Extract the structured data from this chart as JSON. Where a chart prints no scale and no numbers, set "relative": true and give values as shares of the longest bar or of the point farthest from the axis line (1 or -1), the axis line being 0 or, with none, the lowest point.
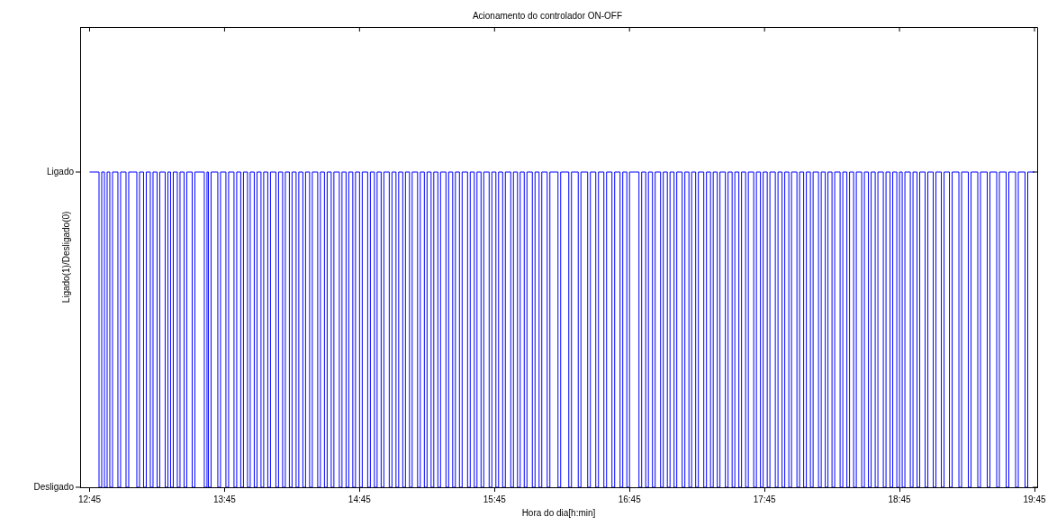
{
  "chart_data": {
    "type": "step",
    "title": "Acionamento do controlador ON-OFF",
    "xlabel": "Hora do dia[h:min]",
    "ylabel": "Ligado(1)/Desligado(0)",
    "xlim": [
      12.68,
      19.77
    ],
    "xticks": [
      {
        "value": 12.75,
        "label": "12:45"
      },
      {
        "value": 13.75,
        "label": "13:45"
      },
      {
        "value": 14.75,
        "label": "14:45"
      },
      {
        "value": 15.75,
        "label": "15:45"
      },
      {
        "value": 16.75,
        "label": "16:45"
      },
      {
        "value": 17.75,
        "label": "17:45"
      },
      {
        "value": 18.75,
        "label": "18:45"
      },
      {
        "value": 19.75,
        "label": "19:45"
      }
    ],
    "relative": true,
    "annotations": [
      "Ligado",
      "Desligado"
    ],
    "grid": false,
    "legend": false,
    "marker": "none",
    "line_style": "solid",
    "series": [
      {
        "color": "#0000ff",
        "x": [
          12.75,
          12.82,
          12.84,
          12.86,
          12.88,
          12.9,
          12.92,
          12.96,
          12.98,
          13.02,
          13.04,
          13.1,
          13.12,
          13.15,
          13.17,
          13.2,
          13.22,
          13.25,
          13.27,
          13.31,
          13.33,
          13.35,
          13.37,
          13.4,
          13.42,
          13.45,
          13.47,
          13.51,
          13.53,
          13.6,
          13.62,
          13.63,
          13.65,
          13.7,
          13.72,
          13.76,
          13.78,
          13.82,
          13.84,
          13.87,
          13.89,
          13.92,
          13.94,
          13.97,
          13.99,
          14.02,
          14.04,
          14.07,
          14.09,
          14.13,
          14.15,
          14.18,
          14.2,
          14.23,
          14.25,
          14.28,
          14.3,
          14.33,
          14.35,
          14.38,
          14.4,
          14.44,
          14.46,
          14.49,
          14.51,
          14.54,
          14.56,
          14.6,
          14.62,
          14.65,
          14.67,
          14.7,
          14.72,
          14.75,
          14.77,
          14.81,
          14.83,
          14.86,
          14.88,
          14.91,
          14.93,
          14.97,
          14.99,
          15.02,
          15.04,
          15.07,
          15.09,
          15.12,
          15.14,
          15.18,
          15.2,
          15.23,
          15.25,
          15.28,
          15.3,
          15.33,
          15.35,
          15.39,
          15.41,
          15.44,
          15.46,
          15.49,
          15.51,
          15.55,
          15.57,
          15.6,
          15.62,
          15.65,
          15.67,
          15.71,
          15.73,
          15.76,
          15.78,
          15.81,
          15.83,
          15.87,
          15.89,
          15.92,
          15.94,
          15.97,
          15.99,
          16.03,
          16.05,
          16.08,
          16.1,
          16.14,
          16.16,
          16.22,
          16.24,
          16.3,
          16.32,
          16.37,
          16.39,
          16.44,
          16.46,
          16.5,
          16.52,
          16.56,
          16.58,
          16.62,
          16.64,
          16.68,
          16.7,
          16.73,
          16.75,
          16.82,
          16.84,
          16.87,
          16.89,
          16.92,
          16.94,
          16.98,
          17.0,
          17.03,
          17.05,
          17.08,
          17.1,
          17.14,
          17.16,
          17.19,
          17.21,
          17.24,
          17.26,
          17.3,
          17.32,
          17.35,
          17.37,
          17.4,
          17.42,
          17.46,
          17.48,
          17.51,
          17.53,
          17.56,
          17.58,
          17.61,
          17.63,
          17.67,
          17.69,
          17.72,
          17.74,
          17.77,
          17.79,
          17.83,
          17.85,
          17.88,
          17.9,
          17.93,
          17.95,
          17.99,
          18.01,
          18.04,
          18.06,
          18.09,
          18.11,
          18.15,
          18.17,
          18.2,
          18.22,
          18.25,
          18.27,
          18.31,
          18.33,
          18.36,
          18.38,
          18.41,
          18.43,
          18.47,
          18.49,
          18.52,
          18.54,
          18.57,
          18.59,
          18.63,
          18.65,
          18.68,
          18.7,
          18.73,
          18.75,
          18.77,
          18.79,
          18.83,
          18.85,
          18.88,
          18.9,
          18.94,
          18.96,
          19.0,
          19.02,
          19.06,
          19.08,
          19.12,
          19.14,
          19.19,
          19.21,
          19.26,
          19.28,
          19.33,
          19.35,
          19.4,
          19.42,
          19.47,
          19.49,
          19.54,
          19.56,
          19.61,
          19.63,
          19.68,
          19.7,
          19.75
        ],
        "values": [
          1,
          0,
          1,
          0,
          1,
          0,
          1,
          0,
          1,
          0,
          1,
          0,
          1,
          0,
          1,
          0,
          1,
          0,
          1,
          0,
          1,
          0,
          1,
          0,
          1,
          0,
          1,
          0,
          1,
          0,
          1,
          0,
          1,
          0,
          1,
          0,
          1,
          0,
          1,
          0,
          1,
          0,
          1,
          0,
          1,
          0,
          1,
          0,
          1,
          0,
          1,
          0,
          1,
          0,
          1,
          0,
          1,
          0,
          1,
          0,
          1,
          0,
          1,
          0,
          1,
          0,
          1,
          0,
          1,
          0,
          1,
          0,
          1,
          0,
          1,
          0,
          1,
          0,
          1,
          0,
          1,
          0,
          1,
          0,
          1,
          0,
          1,
          0,
          1,
          0,
          1,
          0,
          1,
          0,
          1,
          0,
          1,
          0,
          1,
          0,
          1,
          0,
          1,
          0,
          1,
          0,
          1,
          0,
          1,
          0,
          1,
          0,
          1,
          0,
          1,
          0,
          1,
          0,
          1,
          0,
          1,
          0,
          1,
          0,
          1,
          0,
          1,
          0,
          1,
          0,
          1,
          0,
          1,
          0,
          1,
          0,
          1,
          0,
          1,
          0,
          1,
          0,
          1,
          0,
          1,
          0,
          1,
          0,
          1,
          0,
          1,
          0,
          1,
          0,
          1,
          0,
          1,
          0,
          1,
          0,
          1,
          0,
          1,
          0,
          1,
          0,
          1,
          0,
          1,
          0,
          1,
          0,
          1,
          0,
          1,
          0,
          1,
          0,
          1,
          0,
          1,
          0,
          1,
          0,
          1,
          0,
          1,
          0,
          1,
          0,
          1,
          0,
          1,
          0,
          1,
          0,
          1,
          0,
          1,
          0,
          1,
          0,
          1,
          0,
          1,
          0,
          1,
          0,
          1,
          0,
          1,
          0,
          1,
          0,
          1,
          0,
          1,
          0,
          1,
          0,
          1,
          0,
          1,
          0,
          1,
          0,
          1,
          0,
          1,
          0,
          1,
          0,
          1,
          0,
          1,
          0,
          1,
          0,
          1,
          0,
          1,
          0,
          1,
          0,
          1,
          0,
          1,
          0,
          1,
          1
        ]
      }
    ]
  }
}
